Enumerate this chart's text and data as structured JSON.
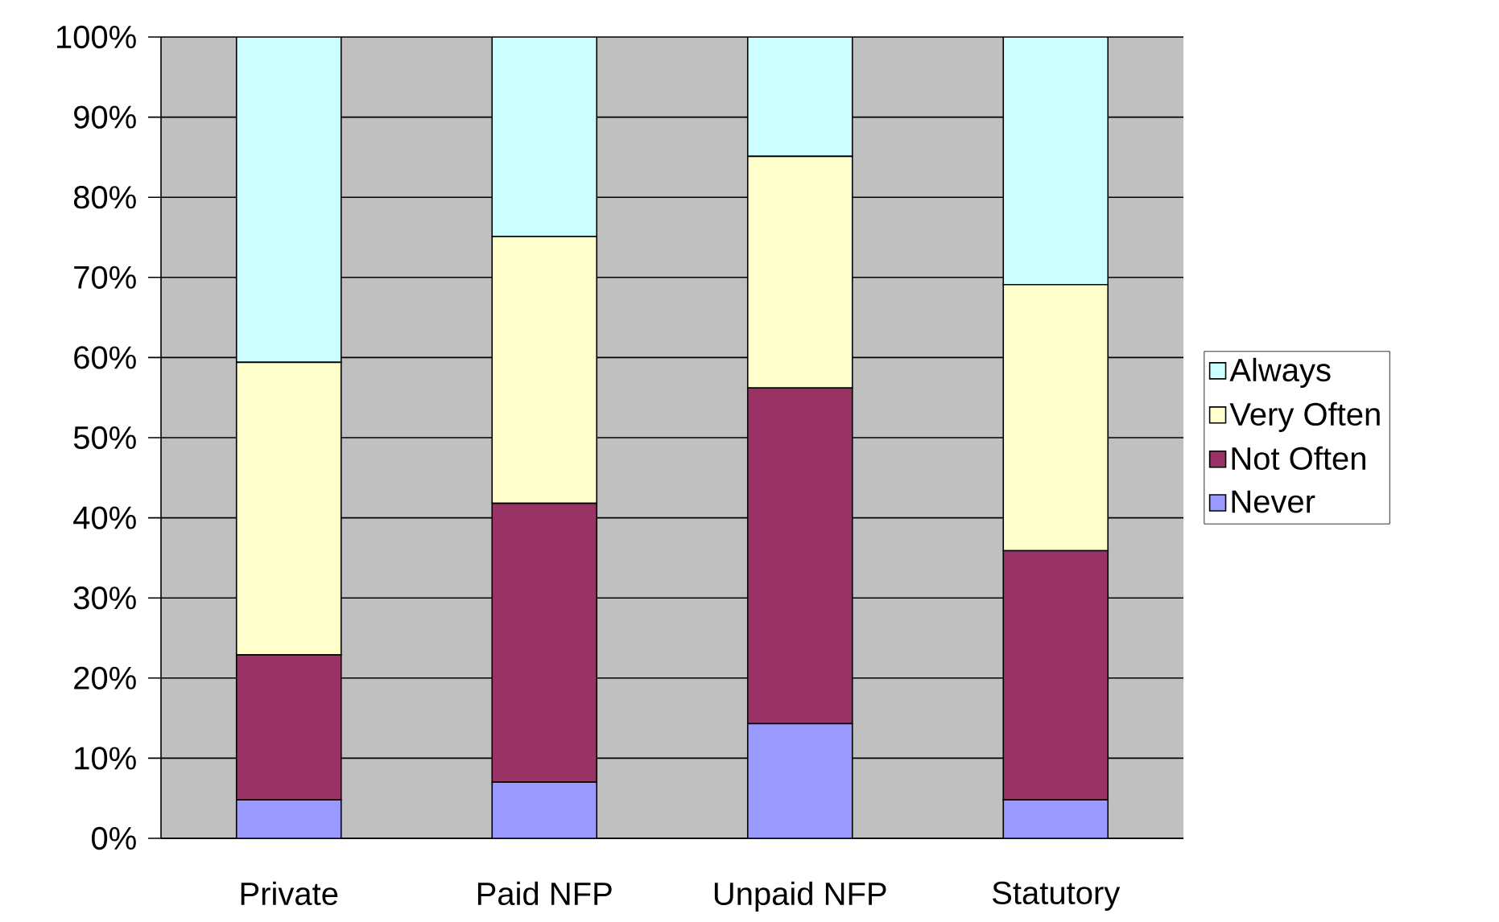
{
  "chart_data": {
    "type": "bar",
    "stacked": true,
    "categories": [
      "Private",
      "Paid NFP",
      "Unpaid NFP",
      "Statutory"
    ],
    "series": [
      {
        "name": "Never",
        "color": "#9999ff",
        "values": [
          4.8,
          7.0,
          14.3,
          4.8
        ]
      },
      {
        "name": "Not Often",
        "color": "#993366",
        "values": [
          18.1,
          34.8,
          41.9,
          31.1
        ]
      },
      {
        "name": "Very Often",
        "color": "#ffffcc",
        "values": [
          36.5,
          33.3,
          28.9,
          33.2
        ]
      },
      {
        "name": "Always",
        "color": "#ccffff",
        "values": [
          40.6,
          24.9,
          14.9,
          30.9
        ]
      }
    ],
    "ylim": [
      0,
      100
    ],
    "yticks": [
      {
        "value": 0,
        "label": "0%"
      },
      {
        "value": 10,
        "label": "10%"
      },
      {
        "value": 20,
        "label": "20%"
      },
      {
        "value": 30,
        "label": "30%"
      },
      {
        "value": 40,
        "label": "40%"
      },
      {
        "value": 50,
        "label": "50%"
      },
      {
        "value": 60,
        "label": "60%"
      },
      {
        "value": 70,
        "label": "70%"
      },
      {
        "value": 80,
        "label": "80%"
      },
      {
        "value": 90,
        "label": "90%"
      },
      {
        "value": 100,
        "label": "100%"
      }
    ],
    "grid": "y",
    "legend": "right"
  }
}
